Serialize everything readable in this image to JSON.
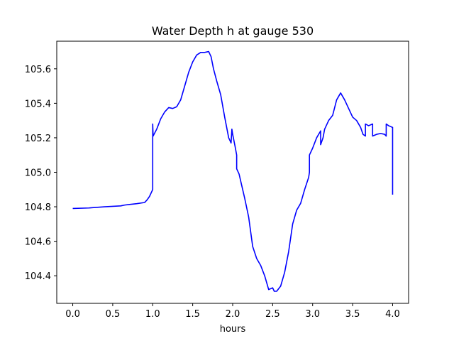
{
  "chart_data": {
    "type": "line",
    "title": "Water Depth h at gauge 530",
    "xlabel": "hours",
    "ylabel": "",
    "xlim": [
      -0.2,
      4.2
    ],
    "ylim": [
      104.24,
      105.76
    ],
    "xticks": [
      0.0,
      0.5,
      1.0,
      1.5,
      2.0,
      2.5,
      3.0,
      3.5,
      4.0
    ],
    "xtick_labels": [
      "0.0",
      "0.5",
      "1.0",
      "1.5",
      "2.0",
      "2.5",
      "3.0",
      "3.5",
      "4.0"
    ],
    "yticks": [
      104.4,
      104.6,
      104.8,
      105.0,
      105.2,
      105.4,
      105.6
    ],
    "ytick_labels": [
      "104.4",
      "104.6",
      "104.8",
      "105.0",
      "105.2",
      "105.4",
      "105.6"
    ],
    "grid": false,
    "series": [
      {
        "color": "#0000ff",
        "x": [
          0.0,
          0.2,
          0.4,
          0.6,
          0.65,
          0.7,
          0.8,
          0.9,
          0.93,
          0.96,
          1.0,
          1.0,
          1.005,
          1.05,
          1.1,
          1.15,
          1.2,
          1.25,
          1.3,
          1.35,
          1.4,
          1.45,
          1.5,
          1.55,
          1.6,
          1.65,
          1.7,
          1.73,
          1.76,
          1.8,
          1.85,
          1.9,
          1.95,
          1.98,
          1.99,
          2.0,
          2.03,
          2.05,
          2.05,
          2.08,
          2.1,
          2.15,
          2.2,
          2.25,
          2.3,
          2.35,
          2.4,
          2.45,
          2.5,
          2.52,
          2.55,
          2.6,
          2.65,
          2.7,
          2.75,
          2.8,
          2.85,
          2.9,
          2.95,
          2.96,
          2.96,
          3.0,
          3.05,
          3.1,
          3.1,
          3.13,
          3.15,
          3.2,
          3.25,
          3.3,
          3.35,
          3.4,
          3.45,
          3.5,
          3.55,
          3.6,
          3.63,
          3.66,
          3.66,
          3.7,
          3.75,
          3.75,
          3.8,
          3.85,
          3.9,
          3.92,
          3.92,
          3.95,
          4.0,
          4.0
        ],
        "y": [
          104.79,
          104.793,
          104.8,
          104.805,
          104.81,
          104.813,
          104.818,
          104.825,
          104.84,
          104.86,
          104.9,
          105.28,
          105.21,
          105.25,
          105.31,
          105.35,
          105.375,
          105.37,
          105.38,
          105.42,
          105.5,
          105.58,
          105.64,
          105.68,
          105.695,
          105.695,
          105.7,
          105.67,
          105.6,
          105.53,
          105.45,
          105.32,
          105.2,
          105.17,
          105.25,
          105.22,
          105.15,
          105.1,
          105.02,
          104.99,
          104.95,
          104.85,
          104.74,
          104.57,
          104.5,
          104.46,
          104.4,
          104.32,
          104.33,
          104.31,
          104.31,
          104.34,
          104.42,
          104.54,
          104.7,
          104.78,
          104.82,
          104.9,
          104.97,
          105.0,
          105.1,
          105.14,
          105.2,
          105.24,
          105.16,
          105.2,
          105.25,
          105.3,
          105.33,
          105.42,
          105.46,
          105.42,
          105.37,
          105.32,
          105.3,
          105.26,
          105.22,
          105.21,
          105.28,
          105.27,
          105.28,
          105.21,
          105.22,
          105.225,
          105.22,
          105.21,
          105.28,
          105.27,
          105.26,
          104.87
        ]
      }
    ]
  }
}
